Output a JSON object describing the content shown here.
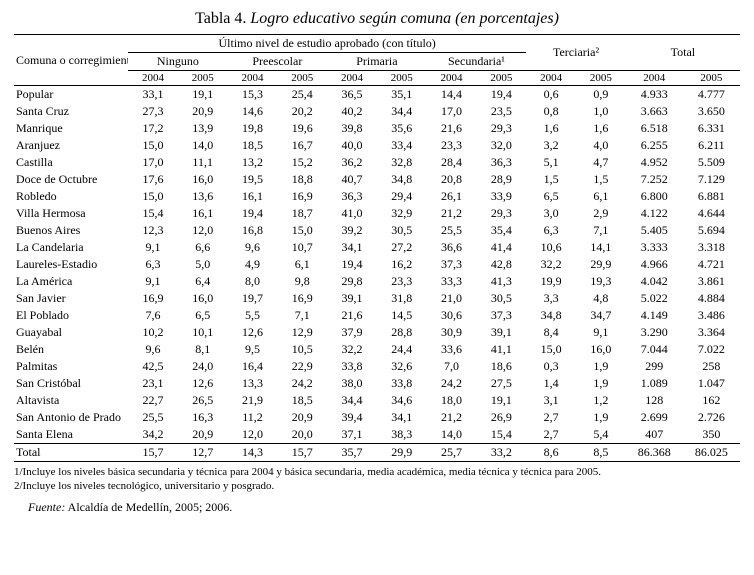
{
  "title_label": "Tabla 4.",
  "title_desc": "Logro educativo según comuna (en porcentajes)",
  "header_supergroup": "Último nivel de estudio aprobado (con título)",
  "header_rowname": "Comuna o corregimiento",
  "groups": [
    "Ninguno",
    "Preescolar",
    "Primaria",
    "Secundaria¹",
    "Terciaria²",
    "Total"
  ],
  "years": [
    "2004",
    "2005"
  ],
  "rows": [
    {
      "name": "Popular",
      "v": [
        "33,1",
        "19,1",
        "15,3",
        "25,4",
        "36,5",
        "35,1",
        "14,4",
        "19,4",
        "0,6",
        "0,9",
        "4.933",
        "4.777"
      ]
    },
    {
      "name": "Santa Cruz",
      "v": [
        "27,3",
        "20,9",
        "14,6",
        "20,2",
        "40,2",
        "34,4",
        "17,0",
        "23,5",
        "0,8",
        "1,0",
        "3.663",
        "3.650"
      ]
    },
    {
      "name": "Manrique",
      "v": [
        "17,2",
        "13,9",
        "19,8",
        "19,6",
        "39,8",
        "35,6",
        "21,6",
        "29,3",
        "1,6",
        "1,6",
        "6.518",
        "6.331"
      ]
    },
    {
      "name": "Aranjuez",
      "v": [
        "15,0",
        "14,0",
        "18,5",
        "16,7",
        "40,0",
        "33,4",
        "23,3",
        "32,0",
        "3,2",
        "4,0",
        "6.255",
        "6.211"
      ]
    },
    {
      "name": "Castilla",
      "v": [
        "17,0",
        "11,1",
        "13,2",
        "15,2",
        "36,2",
        "32,8",
        "28,4",
        "36,3",
        "5,1",
        "4,7",
        "4.952",
        "5.509"
      ]
    },
    {
      "name": "Doce de Octubre",
      "v": [
        "17,6",
        "16,0",
        "19,5",
        "18,8",
        "40,7",
        "34,8",
        "20,8",
        "28,9",
        "1,5",
        "1,5",
        "7.252",
        "7.129"
      ]
    },
    {
      "name": "Robledo",
      "v": [
        "15,0",
        "13,6",
        "16,1",
        "16,9",
        "36,3",
        "29,4",
        "26,1",
        "33,9",
        "6,5",
        "6,1",
        "6.800",
        "6.881"
      ]
    },
    {
      "name": "Villa Hermosa",
      "v": [
        "15,4",
        "16,1",
        "19,4",
        "18,7",
        "41,0",
        "32,9",
        "21,2",
        "29,3",
        "3,0",
        "2,9",
        "4.122",
        "4.644"
      ]
    },
    {
      "name": "Buenos Aires",
      "v": [
        "12,3",
        "12,0",
        "16,8",
        "15,0",
        "39,2",
        "30,5",
        "25,5",
        "35,4",
        "6,3",
        "7,1",
        "5.405",
        "5.694"
      ]
    },
    {
      "name": "La Candelaria",
      "v": [
        "9,1",
        "6,6",
        "9,6",
        "10,7",
        "34,1",
        "27,2",
        "36,6",
        "41,4",
        "10,6",
        "14,1",
        "3.333",
        "3.318"
      ]
    },
    {
      "name": "Laureles-Estadio",
      "v": [
        "6,3",
        "5,0",
        "4,9",
        "6,1",
        "19,4",
        "16,2",
        "37,3",
        "42,8",
        "32,2",
        "29,9",
        "4.966",
        "4.721"
      ]
    },
    {
      "name": "La América",
      "v": [
        "9,1",
        "6,4",
        "8,0",
        "9,8",
        "29,8",
        "23,3",
        "33,3",
        "41,3",
        "19,9",
        "19,3",
        "4.042",
        "3.861"
      ]
    },
    {
      "name": "San Javier",
      "v": [
        "16,9",
        "16,0",
        "19,7",
        "16,9",
        "39,1",
        "31,8",
        "21,0",
        "30,5",
        "3,3",
        "4,8",
        "5.022",
        "4.884"
      ]
    },
    {
      "name": "El Poblado",
      "v": [
        "7,6",
        "6,5",
        "5,5",
        "7,1",
        "21,6",
        "14,5",
        "30,6",
        "37,3",
        "34,8",
        "34,7",
        "4.149",
        "3.486"
      ]
    },
    {
      "name": "Guayabal",
      "v": [
        "10,2",
        "10,1",
        "12,6",
        "12,9",
        "37,9",
        "28,8",
        "30,9",
        "39,1",
        "8,4",
        "9,1",
        "3.290",
        "3.364"
      ]
    },
    {
      "name": "Belén",
      "v": [
        "9,6",
        "8,1",
        "9,5",
        "10,5",
        "32,2",
        "24,4",
        "33,6",
        "41,1",
        "15,0",
        "16,0",
        "7.044",
        "7.022"
      ]
    },
    {
      "name": "Palmitas",
      "v": [
        "42,5",
        "24,0",
        "16,4",
        "22,9",
        "33,8",
        "32,6",
        "7,0",
        "18,6",
        "0,3",
        "1,9",
        "299",
        "258"
      ]
    },
    {
      "name": "San Cristóbal",
      "v": [
        "23,1",
        "12,6",
        "13,3",
        "24,2",
        "38,0",
        "33,8",
        "24,2",
        "27,5",
        "1,4",
        "1,9",
        "1.089",
        "1.047"
      ]
    },
    {
      "name": "Altavista",
      "v": [
        "22,7",
        "26,5",
        "21,9",
        "18,5",
        "34,4",
        "34,6",
        "18,0",
        "19,1",
        "3,1",
        "1,2",
        "128",
        "162"
      ]
    },
    {
      "name": "San Antonio de Prado",
      "v": [
        "25,5",
        "16,3",
        "11,2",
        "20,9",
        "39,4",
        "34,1",
        "21,2",
        "26,9",
        "2,7",
        "1,9",
        "2.699",
        "2.726"
      ]
    },
    {
      "name": "Santa Elena",
      "v": [
        "34,2",
        "20,9",
        "12,0",
        "20,0",
        "37,1",
        "38,3",
        "14,0",
        "15,4",
        "2,7",
        "5,4",
        "407",
        "350"
      ]
    }
  ],
  "total_row": {
    "name": "Total",
    "v": [
      "15,7",
      "12,7",
      "14,3",
      "15,7",
      "35,7",
      "29,9",
      "25,7",
      "33,2",
      "8,6",
      "8,5",
      "86.368",
      "86.025"
    ]
  },
  "footnote1": "1/Incluye los niveles básica secundaria y técnica para 2004 y básica secundaria, media académica, media técnica y técnica para 2005.",
  "footnote2": "2/Incluye los niveles tecnológico, universitario y posgrado.",
  "source_label": "Fuente:",
  "source_text": " Alcaldía de Medellín, 2005; 2006."
}
